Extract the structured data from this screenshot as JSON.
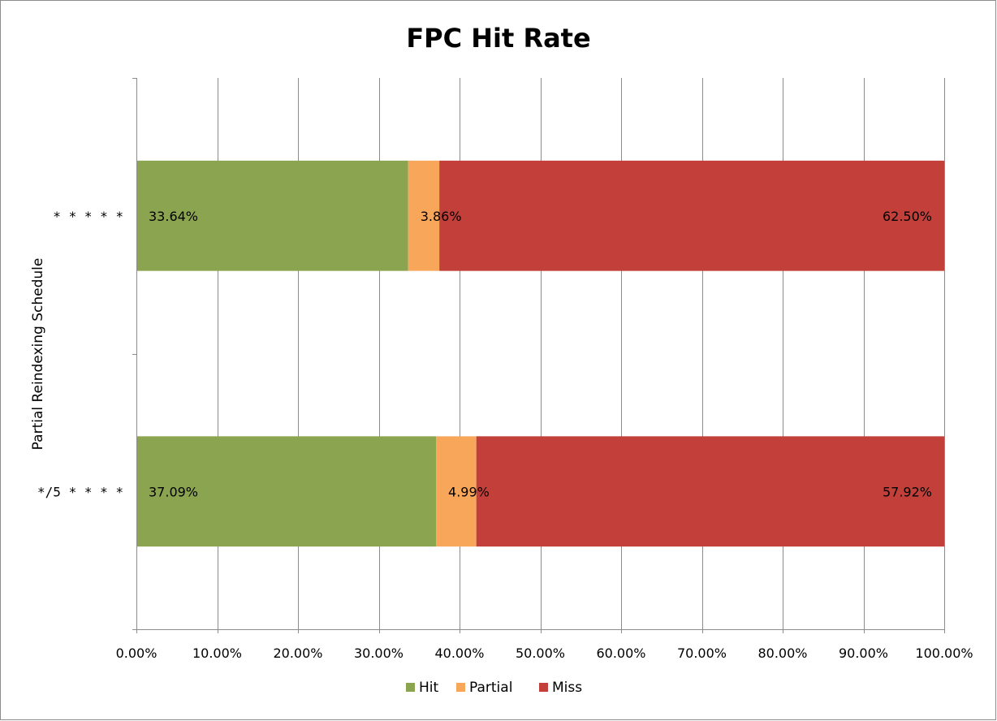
{
  "chart_data": {
    "type": "bar",
    "orientation": "horizontal",
    "stacked": true,
    "title": "FPC Hit Rate",
    "ylabel": "Partial Reindexing Schedule",
    "xlabel": "",
    "xlim": [
      0,
      100
    ],
    "x_ticks": [
      "0.00%",
      "10.00%",
      "20.00%",
      "30.00%",
      "40.00%",
      "50.00%",
      "60.00%",
      "70.00%",
      "80.00%",
      "90.00%",
      "100.00%"
    ],
    "categories": [
      "* * * * *",
      "*/5 * * * *"
    ],
    "series": [
      {
        "name": "Hit",
        "color": "#8ba44f",
        "values": [
          33.64,
          37.09
        ],
        "labels": [
          "33.64%",
          "37.09%"
        ]
      },
      {
        "name": "Partial",
        "color": "#f8a65a",
        "values": [
          3.86,
          4.99
        ],
        "labels": [
          "3.86%",
          "4.99%"
        ]
      },
      {
        "name": "Miss",
        "color": "#c23f3a",
        "values": [
          62.5,
          57.92
        ],
        "labels": [
          "62.50%",
          "57.92%"
        ]
      }
    ],
    "grid": "vertical",
    "legend": "bottom"
  }
}
